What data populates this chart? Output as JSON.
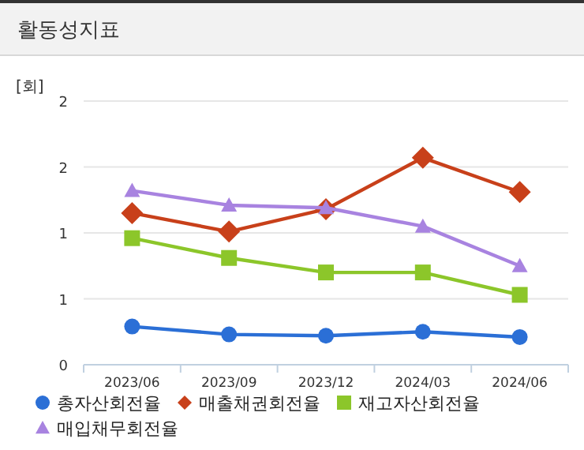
{
  "chart_data": {
    "type": "line",
    "title": "활동성지표",
    "ylabel": "[회]",
    "categories": [
      "2023/06",
      "2023/09",
      "2023/12",
      "2024/03",
      "2024/06"
    ],
    "series": [
      {
        "name": "총자산회전율",
        "color": "#2b6fd6",
        "marker": "circle",
        "values": [
          0.29,
          0.23,
          0.22,
          0.25,
          0.21
        ]
      },
      {
        "name": "매출채권회전율",
        "color": "#c8401a",
        "marker": "diamond",
        "values": [
          1.15,
          1.01,
          1.18,
          1.57,
          1.31
        ]
      },
      {
        "name": "재고자산회전율",
        "color": "#8cc62a",
        "marker": "square",
        "values": [
          0.96,
          0.81,
          0.7,
          0.7,
          0.53
        ]
      },
      {
        "name": "매입채무회전율",
        "color": "#a883e0",
        "marker": "triangle",
        "values": [
          1.32,
          1.21,
          1.19,
          1.05,
          0.75
        ]
      }
    ],
    "ylim": [
      0,
      2
    ],
    "yticks": [
      0,
      {
        "value": 0.5,
        "label": "1"
      },
      {
        "value": 1,
        "label": "1"
      },
      {
        "value": 1.5,
        "label": "2"
      },
      2
    ],
    "grid": "y",
    "legend": "bottom"
  }
}
